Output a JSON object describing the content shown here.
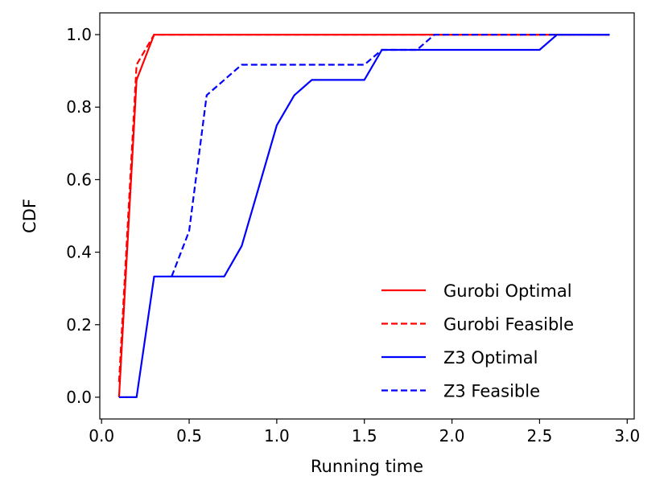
{
  "chart_data": {
    "type": "line",
    "xlabel": "Running time",
    "ylabel": "CDF",
    "xlim": [
      -0.01,
      3.04
    ],
    "ylim": [
      -0.06,
      1.06
    ],
    "xticks": [
      0.0,
      0.5,
      1.0,
      1.5,
      2.0,
      2.5,
      3.0
    ],
    "yticks": [
      0.0,
      0.2,
      0.4,
      0.6,
      0.8,
      1.0
    ],
    "xtick_labels": [
      "0.0",
      "0.5",
      "1.0",
      "1.5",
      "2.0",
      "2.5",
      "3.0"
    ],
    "ytick_labels": [
      "0.0",
      "0.2",
      "0.4",
      "0.6",
      "0.8",
      "1.0"
    ],
    "legend_position": "lower-right",
    "grid": false,
    "series": [
      {
        "name": "Gurobi Optimal",
        "color": "#ff0000",
        "style": "solid",
        "x": [
          0.1,
          0.2,
          0.3,
          2.9
        ],
        "y": [
          0.0,
          0.875,
          1.0,
          1.0
        ]
      },
      {
        "name": "Gurobi Feasible",
        "color": "#ff0000",
        "style": "dashed",
        "x": [
          0.1,
          0.2,
          0.3,
          2.9
        ],
        "y": [
          0.042,
          0.917,
          1.0,
          1.0
        ]
      },
      {
        "name": "Z3 Optimal",
        "color": "#0000ff",
        "style": "solid",
        "x": [
          0.1,
          0.2,
          0.3,
          0.4,
          0.5,
          0.6,
          0.7,
          0.8,
          0.9,
          1.0,
          1.1,
          1.2,
          1.3,
          1.4,
          1.5,
          1.6,
          1.7,
          1.8,
          1.9,
          2.0,
          2.1,
          2.2,
          2.3,
          2.4,
          2.5,
          2.6,
          2.7,
          2.8,
          2.9
        ],
        "y": [
          0.0,
          0.0,
          0.333,
          0.333,
          0.333,
          0.333,
          0.333,
          0.417,
          0.583,
          0.75,
          0.833,
          0.875,
          0.875,
          0.875,
          0.875,
          0.958,
          0.958,
          0.958,
          0.958,
          0.958,
          0.958,
          0.958,
          0.958,
          0.958,
          0.958,
          1.0,
          1.0,
          1.0,
          1.0
        ]
      },
      {
        "name": "Z3 Feasible",
        "color": "#0000ff",
        "style": "dashed",
        "x": [
          0.4,
          0.5,
          0.6,
          0.7,
          0.8,
          0.9,
          1.0,
          1.1,
          1.2,
          1.3,
          1.4,
          1.5,
          1.6,
          1.7,
          1.8,
          1.9,
          2.0,
          2.1,
          2.2,
          2.3,
          2.4,
          2.5,
          2.6,
          2.7,
          2.8,
          2.9
        ],
        "y": [
          0.333,
          0.458,
          0.833,
          0.875,
          0.917,
          0.917,
          0.917,
          0.917,
          0.917,
          0.917,
          0.917,
          0.917,
          0.958,
          0.958,
          0.958,
          1.0,
          1.0,
          1.0,
          1.0,
          1.0,
          1.0,
          1.0,
          1.0,
          1.0,
          1.0,
          1.0
        ]
      }
    ]
  }
}
